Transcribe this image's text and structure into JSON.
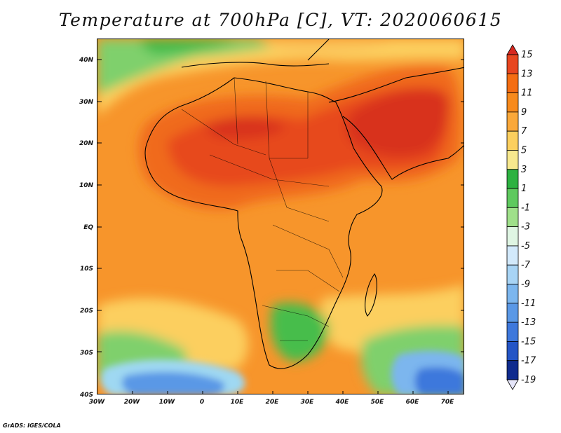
{
  "title": "Temperature at 700hPa [C], VT: 2020060615",
  "credit": "GrADS: IGES/COLA",
  "map": {
    "lon_range": [
      -30,
      75
    ],
    "lat_range": [
      -40,
      45
    ],
    "lat_ticks": [
      "40N",
      "30N",
      "20N",
      "10N",
      "EQ",
      "10S",
      "20S",
      "30S",
      "40S"
    ],
    "lon_ticks": [
      "30W",
      "20W",
      "10W",
      "0",
      "10E",
      "20E",
      "30E",
      "40E",
      "50E",
      "60E",
      "70E"
    ]
  },
  "colorbar": {
    "labels": [
      "15",
      "13",
      "11",
      "9",
      "7",
      "5",
      "3",
      "1",
      "-1",
      "-3",
      "-5",
      "-7",
      "-9",
      "-11",
      "-13",
      "-15",
      "-17",
      "-19"
    ],
    "colors": [
      "#d7281f",
      "#e8461f",
      "#f46d12",
      "#f78a1c",
      "#faa83a",
      "#fccf5e",
      "#f7e88e",
      "#2db241",
      "#5ec95e",
      "#9fe08a",
      "#dff5e3",
      "#d2e9fb",
      "#a8d4f5",
      "#7cb6ee",
      "#5a98e6",
      "#3e78dc",
      "#2455c6",
      "#0f2b8e",
      "#1a1f6e"
    ]
  }
}
